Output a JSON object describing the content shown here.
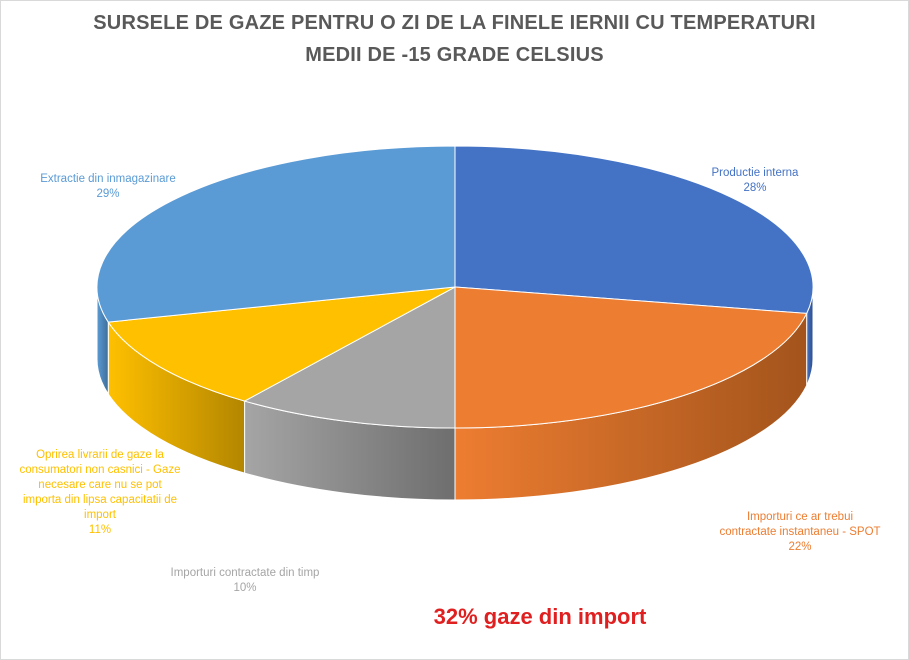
{
  "chart_data": {
    "type": "pie",
    "title_line1": "SURSELE DE GAZE PENTRU O ZI DE LA FINELE IERNII CU TEMPERATURI",
    "title_line2": "MEDII DE -15 GRADE CELSIUS",
    "slices": [
      {
        "label": "Productie interna",
        "value": 28,
        "percent": "28%",
        "color": "#4472C4",
        "side": "#2E4E8A"
      },
      {
        "label": "Importuri ce ar trebui contractate instantaneu - SPOT",
        "label_lines": [
          "Importuri ce ar trebui",
          "contractate instantaneu - SPOT"
        ],
        "value": 22,
        "percent": "22%",
        "color": "#ED7D31",
        "side": "#A3541C"
      },
      {
        "label": "Importuri contractate din timp",
        "value": 10,
        "percent": "10%",
        "color": "#A5A5A5",
        "side": "#6E6E6E"
      },
      {
        "label": "Oprirea livrarii de gaze la consumatori non casnici - Gaze necesare care nu se pot importa din lipsa capacitatii de import",
        "label_lines": [
          "Oprirea livrarii  de gaze la",
          "consumatori  non casnici  - Gaze",
          "necesare care nu se pot",
          "importa din lipsa capacitatii  de",
          "import"
        ],
        "value": 11,
        "percent": "11%",
        "color": "#FFC000",
        "side": "#B38600"
      },
      {
        "label": "Extractie din inmagazinare",
        "value": 29,
        "percent": "29%",
        "color": "#5B9BD5",
        "side": "#3E6E9A"
      }
    ]
  },
  "annotation": "32% gaze din import"
}
